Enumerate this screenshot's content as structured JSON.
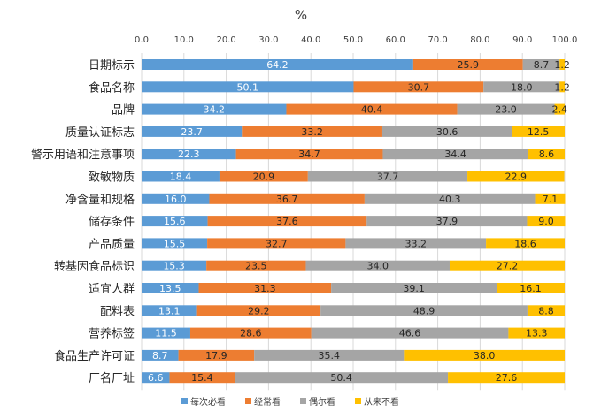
{
  "chart_data": {
    "type": "bar",
    "orientation": "horizontal",
    "stacked": true,
    "title": "%",
    "xlim": [
      0,
      100
    ],
    "xticks": [
      "0.0",
      "10.0",
      "20.0",
      "30.0",
      "40.0",
      "50.0",
      "60.0",
      "70.0",
      "80.0",
      "90.0",
      "100.0"
    ],
    "legend_position": "bottom",
    "grid": true,
    "categories": [
      "日期标示",
      "食品名称",
      "品牌",
      "质量认证标志",
      "警示用语和注意事项",
      "致敏物质",
      "净含量和规格",
      "储存条件",
      "产品质量",
      "转基因食品标识",
      "适宜人群",
      "配料表",
      "营养标签",
      "食品生产许可证",
      "厂名厂址"
    ],
    "series": [
      {
        "name": "每次必看",
        "color": "#5B9BD5",
        "values": [
          64.2,
          50.1,
          34.2,
          23.7,
          22.3,
          18.4,
          16.0,
          15.6,
          15.5,
          15.3,
          13.5,
          13.1,
          11.5,
          8.7,
          6.6
        ]
      },
      {
        "name": "经常看",
        "color": "#ED7D31",
        "values": [
          25.9,
          30.7,
          40.4,
          33.2,
          34.7,
          20.9,
          36.7,
          37.6,
          32.7,
          23.5,
          31.3,
          29.2,
          28.6,
          17.9,
          15.4
        ]
      },
      {
        "name": "偶尔看",
        "color": "#A5A5A5",
        "values": [
          8.7,
          18.0,
          23.0,
          30.6,
          34.4,
          37.7,
          40.3,
          37.9,
          33.2,
          34.0,
          39.1,
          48.9,
          46.6,
          35.4,
          50.4
        ]
      },
      {
        "name": "从来不看",
        "color": "#FFC000",
        "values": [
          1.2,
          1.2,
          2.4,
          12.5,
          8.6,
          22.9,
          7.1,
          9.0,
          18.6,
          27.2,
          16.1,
          8.8,
          13.3,
          38.0,
          27.6
        ]
      }
    ]
  }
}
